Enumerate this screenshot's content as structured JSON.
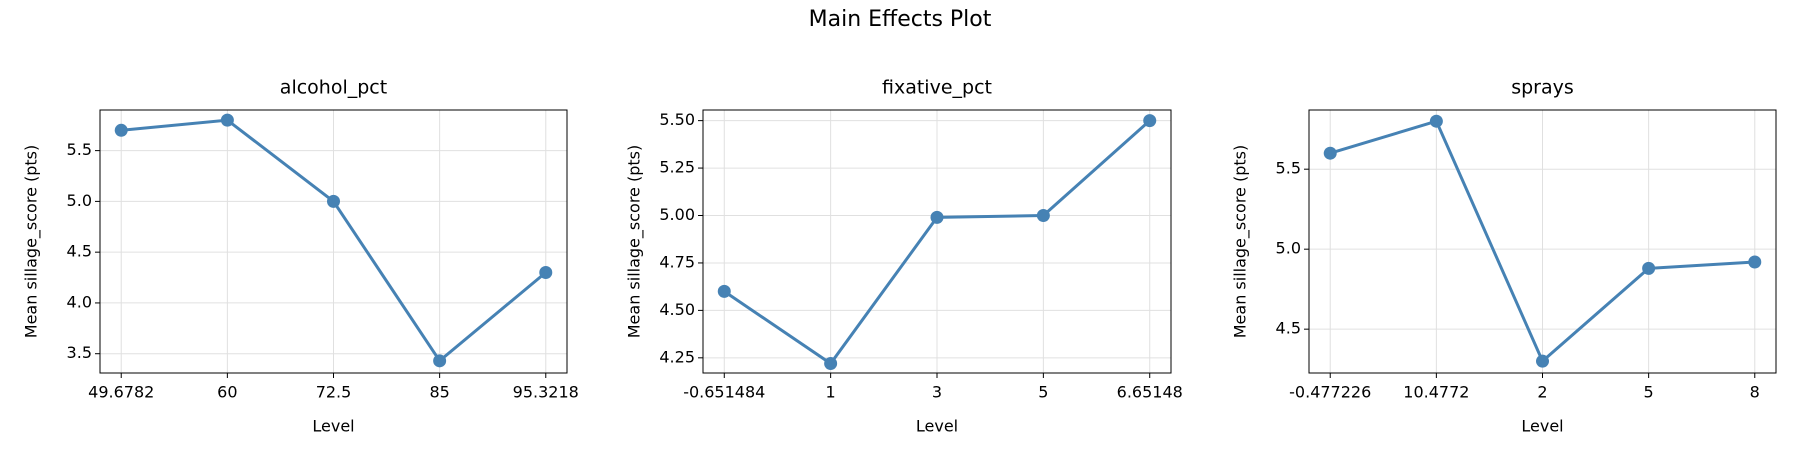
{
  "title": "Main Effects Plot",
  "chart_data": [
    {
      "type": "line",
      "title": "alcohol_pct",
      "x_label": "Level",
      "y_label": "Mean sillage_score (pts)",
      "categories": [
        "49.6782",
        "60",
        "72.5",
        "85",
        "95.3218"
      ],
      "values": [
        5.7,
        5.8,
        5.0,
        3.43,
        4.3
      ],
      "color": "#4682b4",
      "ylim": [
        3.31,
        5.9
      ],
      "yticks": [
        3.5,
        {
          "value": 4,
          "label": "4.0"
        },
        4.5,
        {
          "value": 5,
          "label": "5.0"
        },
        5.5
      ],
      "grid": true
    },
    {
      "type": "line",
      "title": "fixative_pct",
      "x_label": "Level",
      "y_label": "Mean sillage_score (pts)",
      "categories": [
        "-0.651484",
        "1",
        "3",
        "5",
        "6.65148"
      ],
      "values": [
        4.6,
        4.22,
        4.99,
        5.0,
        5.5
      ],
      "color": "#4682b4",
      "ylim": [
        4.17,
        5.556
      ],
      "yticks": [
        4.25,
        {
          "value": 4.5,
          "label": "4.50"
        },
        4.75,
        {
          "value": 5,
          "label": "5.00"
        },
        5.25,
        {
          "value": 5.5,
          "label": "5.50"
        }
      ],
      "grid": true
    },
    {
      "type": "line",
      "title": "sprays",
      "x_label": "Level",
      "y_label": "Mean sillage_score (pts)",
      "categories": [
        "-0.477226",
        "10.4772",
        "2",
        "5",
        "8"
      ],
      "values": [
        5.6,
        5.8,
        4.3,
        4.88,
        4.92
      ],
      "color": "#4682b4",
      "ylim": [
        4.226,
        5.87
      ],
      "yticks": [
        4.5,
        {
          "value": 5,
          "label": "5.0"
        },
        5.5
      ],
      "grid": true
    }
  ]
}
